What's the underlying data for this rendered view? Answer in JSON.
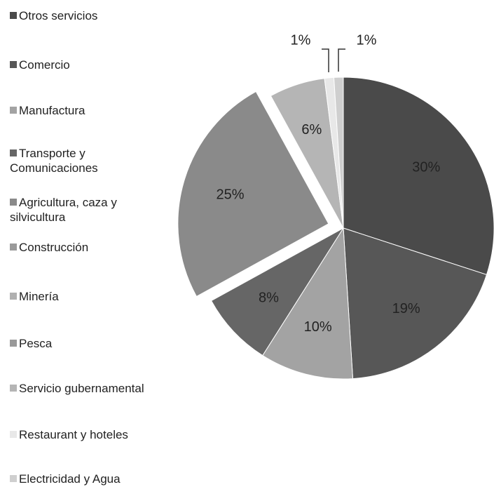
{
  "chart_data": {
    "type": "pie",
    "categories": [
      "Otros servicios",
      "Comercio",
      "Manufactura",
      "Transporte y Comunicaciones",
      "Agricultura, caza y silvicultura",
      "Construcción",
      "Minería",
      "Pesca",
      "Servicio gubernamental",
      "Restaurant y hoteles",
      "Electricidad y Agua"
    ],
    "values": [
      30,
      19,
      10,
      8,
      25,
      0,
      0,
      0,
      6,
      1,
      1
    ],
    "value_labels": [
      "30%",
      "19%",
      "10%",
      "8%",
      "25%",
      null,
      null,
      null,
      "6%",
      "1%",
      "1%"
    ],
    "colors": [
      "#4a4a4a",
      "#575757",
      "#a3a3a3",
      "#666666",
      "#8a8a8a",
      "#9a9a9a",
      "#b0b0b0",
      "#999999",
      "#b5b5b5",
      "#e8e8e8",
      "#cfcfcf"
    ],
    "exploded": [
      false,
      false,
      false,
      false,
      true,
      false,
      false,
      false,
      false,
      false,
      false
    ],
    "legend": "left"
  }
}
